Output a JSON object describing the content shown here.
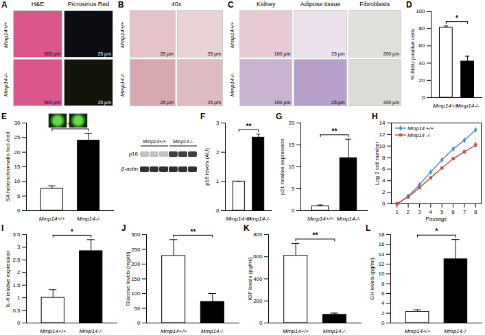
{
  "chart_data": [
    {
      "panel": "D",
      "type": "bar",
      "categories": [
        "Mmp14+/+",
        "Mmp14-/-"
      ],
      "values": [
        81,
        42
      ],
      "errors": [
        2,
        6
      ],
      "colors": [
        "#ffffff",
        "#000000"
      ],
      "y_label": "% BrdU positive cells",
      "ylim": [
        0,
        100
      ],
      "yticks": [
        0,
        20,
        40,
        60,
        80,
        100
      ],
      "significance": "*"
    },
    {
      "panel": "E",
      "type": "bar",
      "categories": [
        "Mmp14+/+",
        "Mmp14-/-"
      ],
      "values": [
        7.5,
        24
      ],
      "errors": [
        1,
        2.5
      ],
      "colors": [
        "#ffffff",
        "#000000"
      ],
      "y_label": "SA heterochromatin foci /cell",
      "ylim": [
        0,
        30
      ],
      "yticks": [
        0,
        5,
        10,
        15,
        20,
        25,
        30
      ],
      "significance": "**"
    },
    {
      "panel": "F",
      "type": "bar",
      "categories": [
        "Mmp14+/+",
        "Mmp14-/-"
      ],
      "values": [
        1,
        2.5
      ],
      "errors": [
        0,
        0.12
      ],
      "colors": [
        "#ffffff",
        "#000000"
      ],
      "y_label": "p16 levels (AU)",
      "ylim": [
        0,
        3
      ],
      "yticks": [
        0,
        1,
        2,
        3
      ],
      "significance": "**"
    },
    {
      "panel": "G",
      "type": "bar",
      "categories": [
        "Mmp14+/+",
        "Mmp14-/-"
      ],
      "values": [
        1,
        12
      ],
      "errors": [
        0.3,
        4.3
      ],
      "colors": [
        "#ffffff",
        "#000000"
      ],
      "y_label": "p21 relative expression",
      "ylim": [
        0,
        20
      ],
      "yticks": [
        0,
        5,
        10,
        15,
        20
      ],
      "significance": "**"
    },
    {
      "panel": "H",
      "type": "line",
      "x_label": "Passage",
      "y_label": "Log 2 cell number",
      "x": [
        1,
        2,
        3,
        4,
        5,
        6,
        7,
        8
      ],
      "xlim": [
        0.5,
        8.5
      ],
      "xticks": [
        1,
        2,
        3,
        4,
        5,
        6,
        7,
        8
      ],
      "ylim": [
        0,
        14
      ],
      "yticks": [
        0,
        2,
        4,
        6,
        8,
        10,
        12,
        14
      ],
      "legend": "top-left",
      "series": [
        {
          "name": "Mmp14 +/+",
          "color": "#4a90d9",
          "marker": "diamond",
          "values": [
            0,
            1.3,
            3.3,
            5.5,
            7.6,
            9.5,
            11,
            12.8
          ],
          "errors": [
            0,
            0.1,
            0.1,
            0.15,
            0.2,
            0.3,
            0.4,
            0.3
          ]
        },
        {
          "name": "Mmp14 -/-",
          "color": "#c0504d",
          "marker": "square",
          "values": [
            0,
            1.2,
            2.8,
            4.5,
            6.2,
            7.8,
            9,
            10.2
          ],
          "errors": [
            0,
            0.1,
            0.1,
            0.15,
            0.2,
            0.3,
            0.3,
            0.5
          ]
        }
      ]
    },
    {
      "panel": "I",
      "type": "bar",
      "categories": [
        "Mmp14+/+",
        "Mmp14-/-"
      ],
      "values": [
        1,
        2.85
      ],
      "errors": [
        0.32,
        0.45
      ],
      "colors": [
        "#ffffff",
        "#000000"
      ],
      "y_label": "IL-6 relative expression",
      "ylim": [
        0,
        3.5
      ],
      "yticks": [
        0,
        0.5,
        1,
        1.5,
        2,
        2.5,
        3,
        3.5
      ],
      "significance": "*"
    },
    {
      "panel": "J",
      "type": "bar",
      "categories": [
        "Mmp14+/+",
        "Mmp14-/-"
      ],
      "values": [
        228,
        72
      ],
      "errors": [
        55,
        28
      ],
      "colors": [
        "#ffffff",
        "#000000"
      ],
      "y_label": "Glucose levels (mg/dl)",
      "ylim": [
        0,
        300
      ],
      "yticks": [
        0,
        50,
        100,
        150,
        200,
        250,
        300
      ],
      "significance": "**"
    },
    {
      "panel": "K",
      "type": "bar",
      "categories": [
        "Mmp14+/+",
        "Mmp14-/-"
      ],
      "values": [
        610,
        75
      ],
      "errors": [
        110,
        15
      ],
      "colors": [
        "#ffffff",
        "#000000"
      ],
      "y_label": "IGF levels (pg/ml)",
      "ylim": [
        0,
        800
      ],
      "yticks": [
        0,
        200,
        400,
        600,
        800
      ],
      "significance": "**"
    },
    {
      "panel": "L",
      "type": "bar",
      "categories": [
        "Mmp14+/+",
        "Mmp14-/-"
      ],
      "values": [
        2.3,
        13
      ],
      "errors": [
        0.4,
        4
      ],
      "colors": [
        "#ffffff",
        "#000000"
      ],
      "y_label": "GH levels (pg/ml)",
      "ylim": [
        0,
        18
      ],
      "yticks": [
        0,
        2,
        4,
        6,
        8,
        10,
        12,
        14,
        16,
        18
      ],
      "significance": "*"
    }
  ],
  "image_panels": [
    {
      "panel": "A",
      "columns": [
        "H&E",
        "Picrosirius Red"
      ],
      "rows": [
        "Mmp14+/+",
        "Mmp14-/-"
      ],
      "scale_bars": [
        [
          "500 µm",
          "25 µm"
        ],
        [
          "500 µm",
          "25 µm"
        ]
      ]
    },
    {
      "panel": "B",
      "columns": [
        "40x"
      ],
      "rows": [
        "Mmp14+/+",
        "Mmp14-/-"
      ],
      "scale_bars": [
        [
          "25 µm",
          "25 µm"
        ],
        [
          "25 µm",
          "25 µm"
        ]
      ]
    },
    {
      "panel": "C",
      "columns": [
        "Kidney",
        "Adipose tissue",
        "Fibroblasts"
      ],
      "rows": [
        "Mmp14+/+",
        "Mmp14-/-"
      ],
      "scale_bars": [
        [
          "100 µm",
          "25 µm",
          "200 µm"
        ],
        [
          "100 µm",
          "25 µm",
          "200 µm"
        ]
      ]
    }
  ],
  "blot": {
    "bands": [
      "p16",
      "β-actin"
    ],
    "groups": [
      "Mmp14+/+",
      "Mmp14-/-"
    ]
  }
}
